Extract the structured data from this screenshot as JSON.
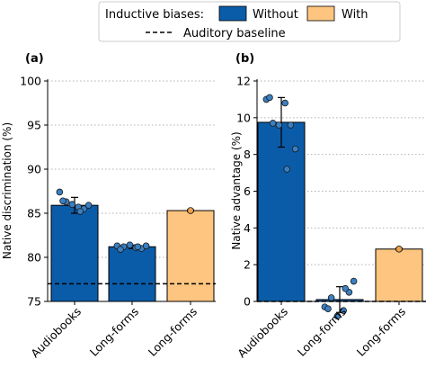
{
  "legend": {
    "title": "Inductive biases:",
    "items": [
      {
        "label": "Without",
        "color": "#0b5ca8"
      },
      {
        "label": "With",
        "color": "#fdc57f"
      }
    ],
    "baseline_label": "Auditory baseline"
  },
  "colors": {
    "without": "#0b5ca8",
    "with": "#fdc57f",
    "edge": "#000000",
    "point_without": "#3a7fc1",
    "point_with": "#f0a04b",
    "grid": "#b0b0b0"
  },
  "chart_data": [
    {
      "type": "bar",
      "panel_label": "(a)",
      "ylabel": "Native discrimination (%)",
      "ylim": [
        75,
        100
      ],
      "yticks": [
        75,
        80,
        85,
        90,
        95,
        100
      ],
      "grid": "horizontal dotted",
      "baseline": 77,
      "categories": [
        "Audiobooks",
        "Long-forms",
        "Long-forms"
      ],
      "bars": [
        {
          "category": "Audiobooks",
          "group": "Without",
          "value": 85.9,
          "err_low": 85.0,
          "err_high": 86.8,
          "points": [
            87.4,
            86.3,
            86.0,
            85.7,
            85.5,
            85.9,
            86.4,
            85.2
          ]
        },
        {
          "category": "Long-forms",
          "group": "Without",
          "value": 81.2,
          "err_low": 81.0,
          "err_high": 81.4,
          "points": [
            81.3,
            81.2,
            81.4,
            81.1,
            81.0,
            81.3,
            80.9,
            81.2
          ]
        },
        {
          "category": "Long-forms",
          "group": "With",
          "value": 85.3,
          "err_low": 85.2,
          "err_high": 85.4,
          "points": [
            85.3
          ]
        }
      ]
    },
    {
      "type": "bar",
      "panel_label": "(b)",
      "ylabel": "Native advantage (%)",
      "ylim": [
        0,
        12
      ],
      "yticks": [
        0,
        2,
        4,
        6,
        8,
        10,
        12
      ],
      "grid": "horizontal dotted",
      "baseline": 0,
      "categories": [
        "Audiobooks",
        "Long-forms",
        "Long-forms"
      ],
      "bars": [
        {
          "category": "Audiobooks",
          "group": "Without",
          "value": 9.75,
          "err_low": 8.4,
          "err_high": 11.1,
          "points": [
            11.0,
            9.7,
            9.6,
            10.8,
            9.6,
            8.3,
            11.1,
            7.2
          ]
        },
        {
          "category": "Long-forms",
          "group": "Without",
          "value": 0.1,
          "err_low": -0.6,
          "err_high": 0.8,
          "points": [
            -0.3,
            0.2,
            -0.8,
            -0.5,
            0.5,
            1.1,
            -0.4,
            0.7
          ]
        },
        {
          "category": "Long-forms",
          "group": "With",
          "value": 2.85,
          "err_low": 2.8,
          "err_high": 2.9,
          "points": [
            2.85
          ]
        }
      ]
    }
  ]
}
